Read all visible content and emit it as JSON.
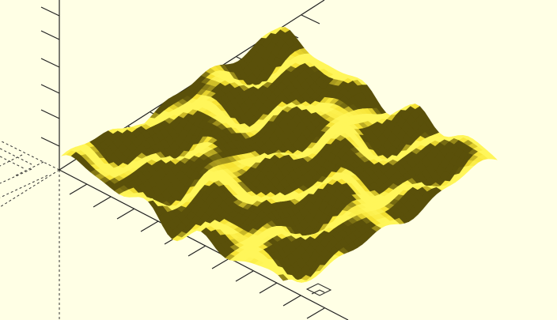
{
  "viewport": {
    "background_color": "#ffffe5",
    "mesh_color": "#f8e53a",
    "mesh_shadow_color": "#5a5010",
    "axis_color": "#1a1a1a",
    "axis_style": "ticked",
    "negative_axis_style": "dashed"
  },
  "surface": {
    "type": "wavy-heightfield",
    "description_icon": "surface-mesh-icon"
  }
}
